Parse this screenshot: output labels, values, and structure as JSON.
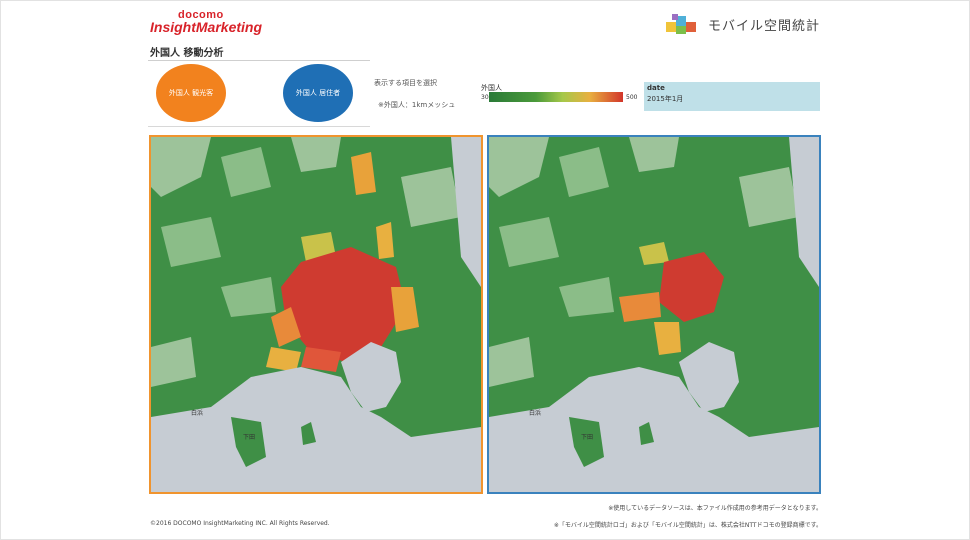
{
  "header": {
    "brand_top": "docomo",
    "brand_main": "InsightMarketing",
    "mobile_logo_text": "モバイル空間統計",
    "page_title": "外国人 移動分析"
  },
  "controls": {
    "tourist_button": "外国人 観光客",
    "resident_button": "外国人 居住者",
    "select_label": "表示する項目を選択",
    "mesh_note": "※外国人：1kmメッシュ"
  },
  "legend": {
    "title": "外国人",
    "min": "30",
    "max": "500",
    "colors": [
      "#2a7a38",
      "#4a9a3a",
      "#a6c84a",
      "#e8b040",
      "#d2352a"
    ]
  },
  "date_panel": {
    "label": "date",
    "value": "2015年1月"
  },
  "maps": {
    "left_border": "#f0942e",
    "right_border": "#3a82bd",
    "left_labels": [
      "白浜",
      "下田"
    ],
    "right_labels": [
      "白浜",
      "下田"
    ]
  },
  "footer": {
    "source_note": "※使用しているデータソースは、本ファイル作成用の参考用データとなります。",
    "trademark_note": "※「モバイル空間統計ロゴ」および「モバイル空間統計」は、株式会社NTTドコモの登録商標です。",
    "copyright": "©2016 DOCOMO InsightMarketing INC. All Rights Reserved."
  }
}
